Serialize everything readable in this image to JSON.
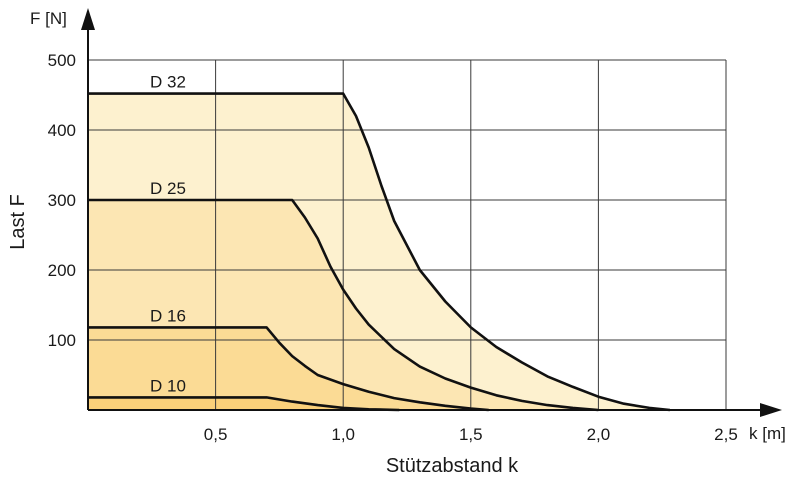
{
  "chart_data": {
    "type": "area",
    "x_unit": "k [m]",
    "y_unit": "F [N]",
    "xlabel": "Stützabstand k",
    "ylabel": "Last F",
    "xlim": [
      0,
      2.5
    ],
    "ylim": [
      0,
      500
    ],
    "x_ticks": [
      0.5,
      1.0,
      1.5,
      2.0,
      2.5
    ],
    "x_tick_labels": [
      "0,5",
      "1,0",
      "1,5",
      "2,0",
      "2,5"
    ],
    "y_ticks": [
      100,
      200,
      300,
      400,
      500
    ],
    "y_tick_labels": [
      "100",
      "200",
      "300",
      "400",
      "500"
    ],
    "grid": true,
    "series": [
      {
        "name": "D 32",
        "fill": "#fdf1cf",
        "points": [
          [
            0,
            452
          ],
          [
            1.0,
            452
          ],
          [
            1.05,
            420
          ],
          [
            1.1,
            375
          ],
          [
            1.15,
            320
          ],
          [
            1.2,
            270
          ],
          [
            1.3,
            200
          ],
          [
            1.4,
            155
          ],
          [
            1.5,
            118
          ],
          [
            1.6,
            90
          ],
          [
            1.7,
            68
          ],
          [
            1.8,
            48
          ],
          [
            1.9,
            33
          ],
          [
            2.0,
            19
          ],
          [
            2.1,
            9
          ],
          [
            2.2,
            3
          ],
          [
            2.28,
            0
          ]
        ]
      },
      {
        "name": "D 25",
        "fill": "#fce6b3",
        "points": [
          [
            0,
            300
          ],
          [
            0.8,
            300
          ],
          [
            0.85,
            275
          ],
          [
            0.9,
            245
          ],
          [
            0.95,
            205
          ],
          [
            1.0,
            172
          ],
          [
            1.05,
            145
          ],
          [
            1.1,
            122
          ],
          [
            1.2,
            87
          ],
          [
            1.3,
            62
          ],
          [
            1.4,
            45
          ],
          [
            1.5,
            32
          ],
          [
            1.6,
            21
          ],
          [
            1.7,
            13
          ],
          [
            1.8,
            7
          ],
          [
            1.9,
            3
          ],
          [
            2.0,
            0
          ]
        ]
      },
      {
        "name": "D 16",
        "fill": "#fbdb95",
        "points": [
          [
            0,
            118
          ],
          [
            0.7,
            118
          ],
          [
            0.75,
            96
          ],
          [
            0.8,
            77
          ],
          [
            0.85,
            63
          ],
          [
            0.9,
            50
          ],
          [
            1.0,
            37
          ],
          [
            1.1,
            26
          ],
          [
            1.2,
            17
          ],
          [
            1.3,
            11
          ],
          [
            1.4,
            6
          ],
          [
            1.5,
            2
          ],
          [
            1.57,
            0
          ]
        ]
      },
      {
        "name": "D 10",
        "fill": "#fad07a",
        "points": [
          [
            0,
            18
          ],
          [
            0.7,
            18
          ],
          [
            0.75,
            15
          ],
          [
            0.8,
            12
          ],
          [
            0.9,
            7
          ],
          [
            1.0,
            3
          ],
          [
            1.1,
            1
          ],
          [
            1.22,
            0
          ]
        ]
      }
    ]
  }
}
